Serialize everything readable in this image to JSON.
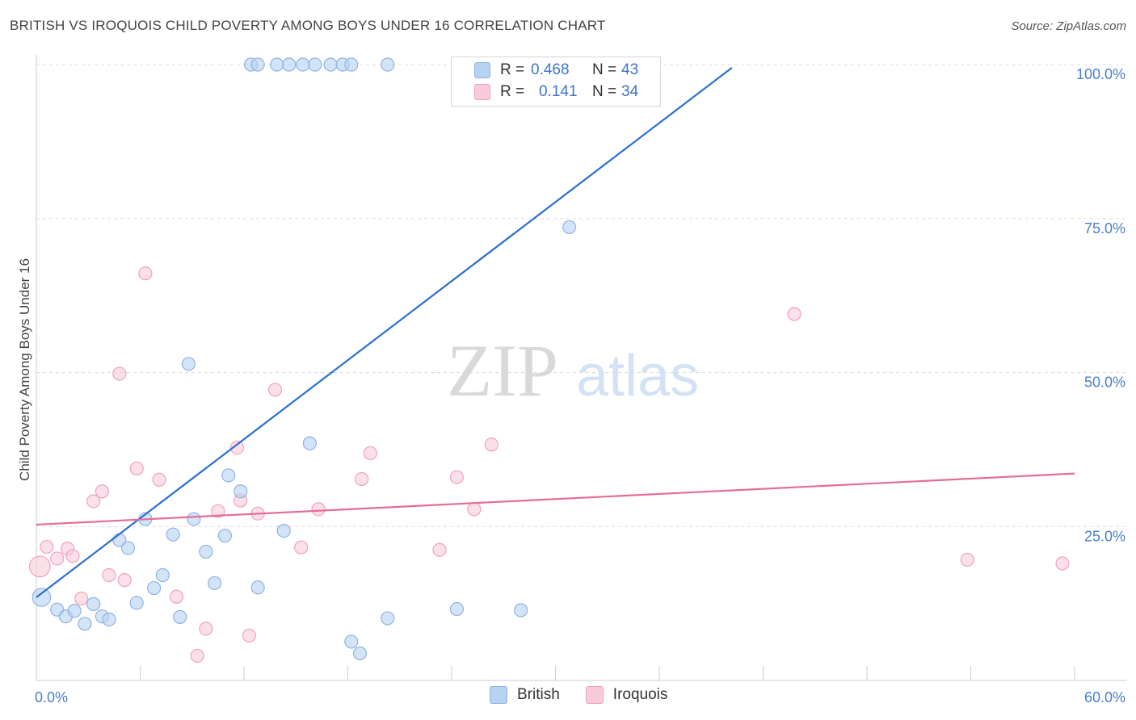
{
  "title": "BRITISH VS IROQUOIS CHILD POVERTY AMONG BOYS UNDER 16 CORRELATION CHART",
  "source": "Source: ZipAtlas.com",
  "watermark": {
    "zip": "ZIP",
    "atlas": "atlas"
  },
  "legend": {
    "r_label": "R =",
    "n_label": "N =",
    "british": {
      "r": "0.468",
      "n": "43"
    },
    "iroquois": {
      "r": "0.141",
      "n": "34"
    }
  },
  "colors": {
    "british_fill": "#b8d2f3",
    "british_stroke": "#8fb3e3",
    "british_line": "#2b6fcf",
    "iroquois_fill": "#f9cbd9",
    "iroquois_stroke": "#f1a3bb",
    "iroquois_line": "#e56d95",
    "tick_text": "#4a7fc9"
  },
  "chart_data": {
    "type": "scatter",
    "title": "BRITISH VS IROQUOIS CHILD POVERTY AMONG BOYS UNDER 16 CORRELATION CHART",
    "xlabel": "",
    "ylabel": "Child Poverty Among Boys Under 16",
    "xlim": [
      0,
      60
    ],
    "ylim": [
      0,
      100
    ],
    "x_tick_labels": [
      "0.0%",
      "60.0%"
    ],
    "y_ticks": [
      25,
      50,
      75,
      100
    ],
    "y_tick_labels": [
      "25.0%",
      "50.0%",
      "75.0%",
      "100.0%"
    ],
    "grid": true,
    "legend_position": "top-center",
    "series": [
      {
        "name": "British",
        "points": [
          [
            0.3,
            13.5,
            1.4
          ],
          [
            1.2,
            11.5,
            1
          ],
          [
            1.7,
            10.4,
            1
          ],
          [
            2.2,
            11.3,
            1
          ],
          [
            2.8,
            9.2,
            1
          ],
          [
            3.3,
            12.4,
            1
          ],
          [
            3.8,
            10.4,
            1
          ],
          [
            4.2,
            9.9,
            1
          ],
          [
            4.8,
            22.8,
            1
          ],
          [
            5.3,
            21.5,
            1
          ],
          [
            5.8,
            12.6,
            1
          ],
          [
            6.3,
            26.2,
            1
          ],
          [
            6.8,
            15.0,
            1
          ],
          [
            7.3,
            17.1,
            1
          ],
          [
            7.9,
            23.7,
            1
          ],
          [
            8.3,
            10.3,
            1
          ],
          [
            8.8,
            51.4,
            1
          ],
          [
            9.1,
            26.2,
            1
          ],
          [
            9.8,
            20.9,
            1
          ],
          [
            10.3,
            15.8,
            1
          ],
          [
            10.9,
            23.5,
            1
          ],
          [
            11.1,
            33.3,
            1
          ],
          [
            11.8,
            30.7,
            1
          ],
          [
            12.8,
            15.1,
            1
          ],
          [
            14.3,
            24.3,
            1
          ],
          [
            15.8,
            38.5,
            1
          ],
          [
            18.2,
            6.3,
            1
          ],
          [
            18.7,
            4.4,
            1
          ],
          [
            20.3,
            10.1,
            1
          ],
          [
            24.3,
            11.6,
            1
          ],
          [
            28.0,
            11.4,
            1
          ],
          [
            30.8,
            73.6,
            1
          ],
          [
            12.4,
            100,
            1
          ],
          [
            12.8,
            100,
            1
          ],
          [
            13.9,
            100,
            1
          ],
          [
            14.6,
            100,
            1
          ],
          [
            15.4,
            100,
            1
          ],
          [
            16.1,
            100,
            1
          ],
          [
            17.0,
            100,
            1
          ],
          [
            17.7,
            100,
            1
          ],
          [
            18.2,
            100,
            1
          ],
          [
            20.3,
            100,
            1
          ],
          [
            31.3,
            100,
            1
          ]
        ]
      },
      {
        "name": "Iroquois",
        "points": [
          [
            0.2,
            18.5,
            1.6
          ],
          [
            0.6,
            21.7,
            1
          ],
          [
            1.2,
            19.8,
            1
          ],
          [
            1.8,
            21.4,
            1
          ],
          [
            2.1,
            20.2,
            1
          ],
          [
            2.6,
            13.3,
            1
          ],
          [
            3.3,
            29.1,
            1
          ],
          [
            3.8,
            30.7,
            1
          ],
          [
            4.2,
            17.1,
            1
          ],
          [
            4.8,
            49.8,
            1
          ],
          [
            5.1,
            16.3,
            1
          ],
          [
            5.8,
            34.4,
            1
          ],
          [
            6.3,
            66.1,
            1
          ],
          [
            7.1,
            32.6,
            1
          ],
          [
            8.1,
            13.6,
            1
          ],
          [
            9.3,
            4.0,
            1
          ],
          [
            9.8,
            8.4,
            1
          ],
          [
            10.5,
            27.5,
            1
          ],
          [
            11.6,
            37.8,
            1
          ],
          [
            11.8,
            29.2,
            1
          ],
          [
            12.3,
            7.3,
            1
          ],
          [
            12.8,
            27.1,
            1
          ],
          [
            13.8,
            47.2,
            1
          ],
          [
            15.3,
            21.6,
            1
          ],
          [
            16.3,
            27.8,
            1
          ],
          [
            18.8,
            32.7,
            1
          ],
          [
            19.3,
            36.9,
            1
          ],
          [
            23.3,
            21.2,
            1
          ],
          [
            24.3,
            33.0,
            1
          ],
          [
            25.3,
            27.8,
            1
          ],
          [
            26.3,
            38.3,
            1
          ],
          [
            43.8,
            59.5,
            1
          ],
          [
            53.8,
            19.6,
            1
          ],
          [
            59.3,
            19.0,
            1
          ]
        ]
      }
    ],
    "point_format": [
      "x",
      "y",
      "relative_size"
    ],
    "trend_lines": [
      {
        "series": "British",
        "x": [
          0,
          40.2
        ],
        "y": [
          13.5,
          99.5
        ]
      },
      {
        "series": "Iroquois",
        "x": [
          0,
          60
        ],
        "y": [
          25.3,
          33.6
        ]
      }
    ]
  },
  "bottom_legend": [
    "British",
    "Iroquois"
  ]
}
